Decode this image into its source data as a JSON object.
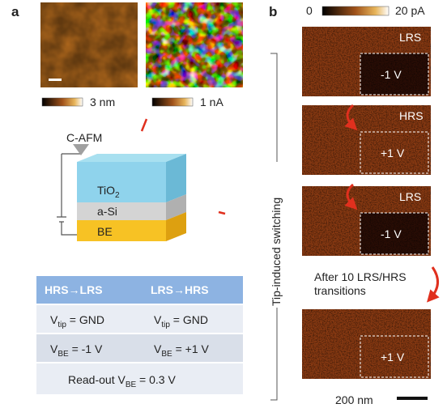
{
  "panel_a": {
    "label": "a",
    "scale_bars": [
      "3 nm",
      "1 nA"
    ],
    "diagram": {
      "probe": "C-AFM",
      "layers": [
        {
          "text": "TiO",
          "sub": "2"
        },
        {
          "text": "a-Si"
        },
        {
          "text": "BE"
        }
      ]
    },
    "table": {
      "header": [
        "HRS→LRS",
        "LRS→HRS"
      ],
      "rows": [
        [
          {
            "main": "V",
            "sub": "tip",
            "rest": " = GND"
          },
          {
            "main": "V",
            "sub": "tip",
            "rest": " = GND"
          }
        ],
        [
          {
            "main": "V",
            "sub": "BE",
            "rest": " = -1 V"
          },
          {
            "main": "V",
            "sub": "BE",
            "rest": " = +1 V"
          }
        ]
      ],
      "footer": {
        "prefix": "Read-out ",
        "main": "V",
        "sub": "BE",
        "rest": " = 0.3 V"
      }
    }
  },
  "panel_b": {
    "label": "b",
    "colorbar": {
      "min": "0",
      "max": "20 pA"
    },
    "side_label": "Tip-induced switching",
    "images": [
      {
        "state": "LRS",
        "bias": "-1 V"
      },
      {
        "state": "HRS",
        "bias": "+1 V"
      },
      {
        "state": "LRS",
        "bias": "-1 V"
      },
      {
        "bias": "+1 V"
      }
    ],
    "note": [
      "After 10 LRS/HRS",
      "transitions"
    ],
    "scale_bar": "200 nm"
  }
}
